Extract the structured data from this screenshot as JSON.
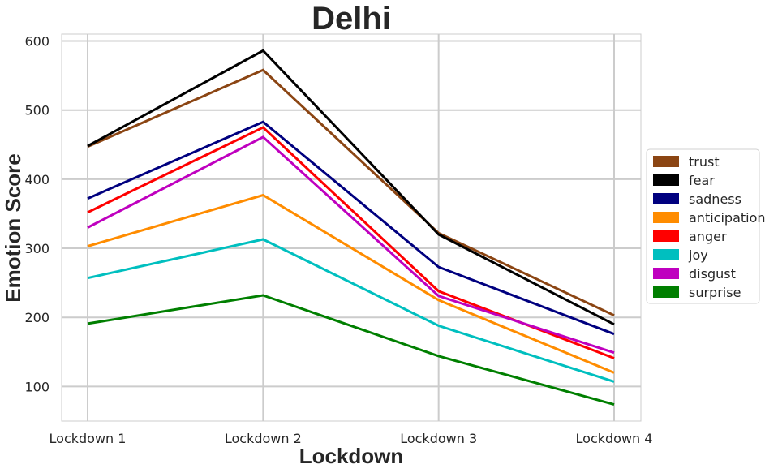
{
  "chart_data": {
    "type": "line",
    "title": "Delhi",
    "xlabel": "Lockdown",
    "ylabel": "Emotion Score",
    "categories": [
      "Lockdown 1",
      "Lockdown 2",
      "Lockdown 3",
      "Lockdown 4"
    ],
    "ylim": [
      50,
      610
    ],
    "yticks": [
      100,
      200,
      300,
      400,
      500,
      600
    ],
    "grid": true,
    "legend_position": "right",
    "series": [
      {
        "name": "trust",
        "color": "#8b4513",
        "values": [
          447,
          558,
          322,
          203
        ]
      },
      {
        "name": "fear",
        "color": "#000000",
        "values": [
          448,
          586,
          320,
          190
        ]
      },
      {
        "name": "sadness",
        "color": "#00007f",
        "values": [
          372,
          483,
          273,
          176
        ]
      },
      {
        "name": "anticipation",
        "color": "#ff8c00",
        "values": [
          303,
          377,
          225,
          120
        ]
      },
      {
        "name": "anger",
        "color": "#ff0000",
        "values": [
          352,
          475,
          238,
          141
        ]
      },
      {
        "name": "joy",
        "color": "#00bfbf",
        "values": [
          257,
          313,
          188,
          107
        ]
      },
      {
        "name": "disgust",
        "color": "#bf00bf",
        "values": [
          330,
          461,
          231,
          149
        ]
      },
      {
        "name": "surprise",
        "color": "#007f00",
        "values": [
          191,
          232,
          144,
          74
        ]
      }
    ]
  }
}
